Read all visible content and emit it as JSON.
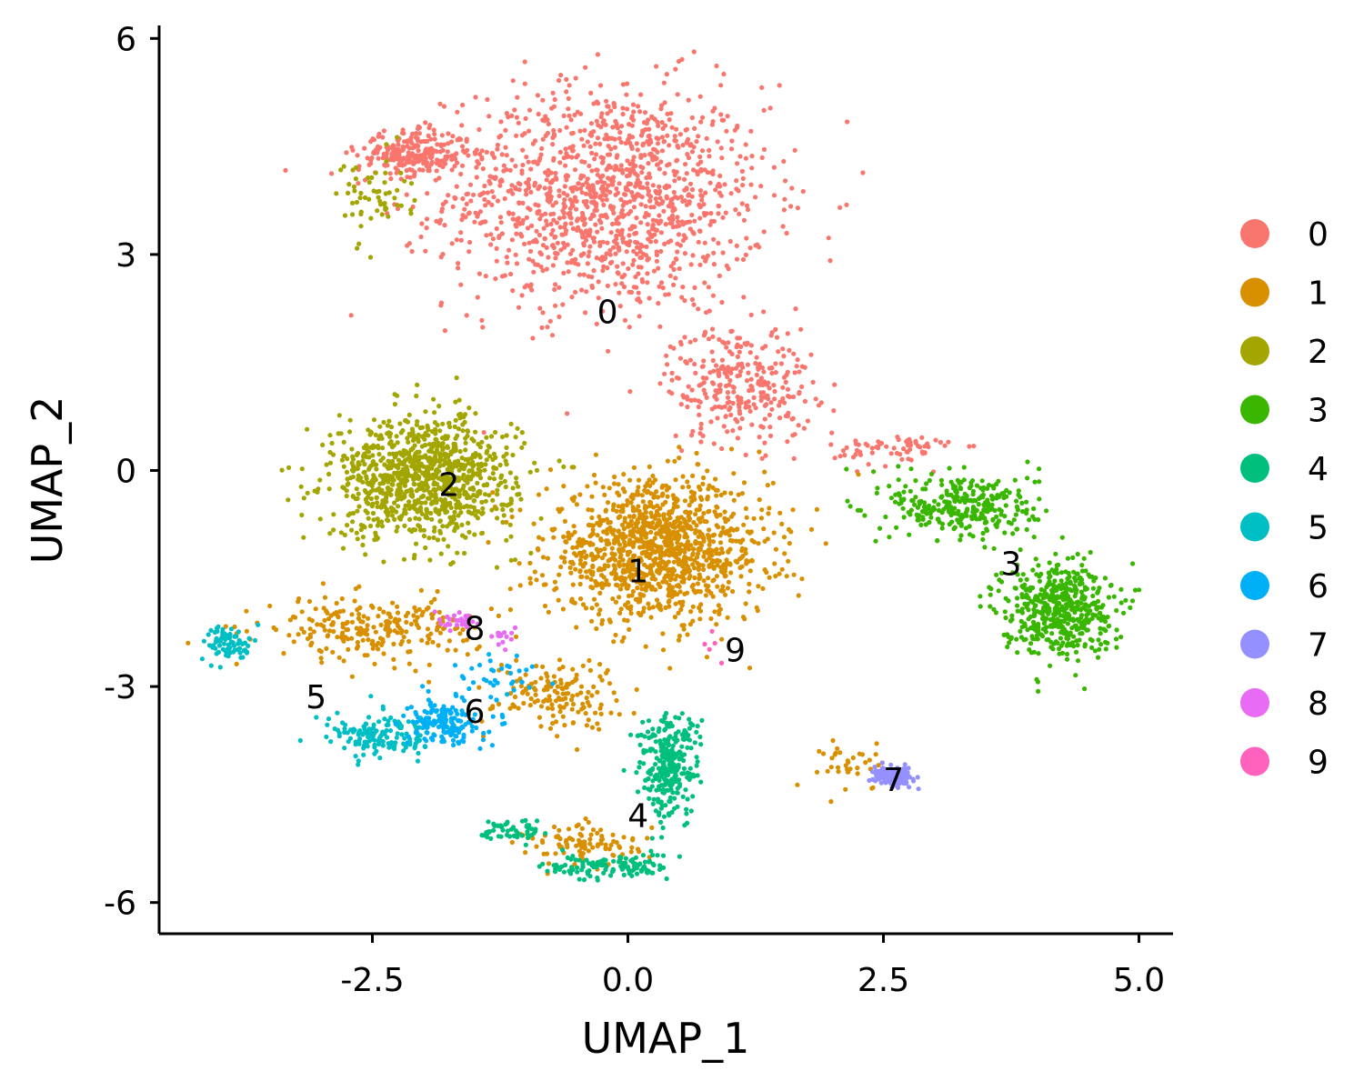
{
  "chart_data": {
    "type": "scatter",
    "title": "",
    "xlabel": "UMAP_1",
    "ylabel": "UMAP_2",
    "xlim": [
      -4.6,
      5.3
    ],
    "ylim": [
      -6.4,
      6.2
    ],
    "x_ticks": [
      -2.5,
      0.0,
      2.5,
      5.0
    ],
    "x_tick_labels": [
      "-2.5",
      "0.0",
      "2.5",
      "5.0"
    ],
    "y_ticks": [
      -6,
      -3,
      0,
      3,
      6
    ],
    "y_tick_labels": [
      "-6",
      "-3",
      "0",
      "3",
      "6"
    ],
    "grid": false,
    "legend_position": "right",
    "legend_title": "",
    "series": [
      {
        "name": "0",
        "color": "#F8766D",
        "label_pos": [
          -0.2,
          2.2
        ],
        "blobs": [
          {
            "center": [
              -0.2,
              3.8
            ],
            "spread": [
              1.3,
              1.3
            ],
            "n": 1300
          },
          {
            "center": [
              -2.1,
              4.4
            ],
            "spread": [
              0.45,
              0.25
            ],
            "n": 250
          },
          {
            "center": [
              1.1,
              1.2
            ],
            "spread": [
              0.6,
              0.7
            ],
            "n": 300
          },
          {
            "center": [
              2.6,
              0.3
            ],
            "spread": [
              0.5,
              0.2
            ],
            "n": 70
          }
        ]
      },
      {
        "name": "1",
        "color": "#D89000",
        "label_pos": [
          0.1,
          -1.4
        ],
        "blobs": [
          {
            "center": [
              0.3,
              -1.1
            ],
            "spread": [
              0.9,
              0.8
            ],
            "n": 1200
          },
          {
            "center": [
              -2.5,
              -2.2
            ],
            "spread": [
              0.9,
              0.35
            ],
            "n": 250
          },
          {
            "center": [
              -0.7,
              -3.1
            ],
            "spread": [
              0.5,
              0.4
            ],
            "n": 150
          },
          {
            "center": [
              -0.4,
              -5.2
            ],
            "spread": [
              0.5,
              0.25
            ],
            "n": 100
          },
          {
            "center": [
              2.2,
              -4.1
            ],
            "spread": [
              0.25,
              0.3
            ],
            "n": 40
          }
        ]
      },
      {
        "name": "2",
        "color": "#A3A500",
        "label_pos": [
          -1.75,
          -0.2
        ],
        "blobs": [
          {
            "center": [
              -2.0,
              -0.1
            ],
            "spread": [
              0.75,
              0.7
            ],
            "n": 1000
          },
          {
            "center": [
              -2.5,
              3.8
            ],
            "spread": [
              0.3,
              0.5
            ],
            "n": 60
          }
        ]
      },
      {
        "name": "3",
        "color": "#39B600",
        "label_pos": [
          3.75,
          -1.3
        ],
        "blobs": [
          {
            "center": [
              3.3,
              -0.5
            ],
            "spread": [
              0.6,
              0.4
            ],
            "n": 300
          },
          {
            "center": [
              4.2,
              -1.9
            ],
            "spread": [
              0.45,
              0.55
            ],
            "n": 500
          }
        ]
      },
      {
        "name": "4",
        "color": "#00BF7D",
        "label_pos": [
          0.1,
          -4.8
        ],
        "blobs": [
          {
            "center": [
              0.4,
              -4.1
            ],
            "spread": [
              0.25,
              0.6
            ],
            "n": 280
          },
          {
            "center": [
              -0.2,
              -5.5
            ],
            "spread": [
              0.5,
              0.15
            ],
            "n": 120
          },
          {
            "center": [
              -1.1,
              -5.0
            ],
            "spread": [
              0.3,
              0.15
            ],
            "n": 50
          }
        ]
      },
      {
        "name": "5",
        "color": "#00BFC4",
        "label_pos": [
          -3.05,
          -3.15
        ],
        "blobs": [
          {
            "center": [
              -3.9,
              -2.4
            ],
            "spread": [
              0.2,
              0.2
            ],
            "n": 80
          },
          {
            "center": [
              -2.4,
              -3.7
            ],
            "spread": [
              0.45,
              0.25
            ],
            "n": 150
          }
        ]
      },
      {
        "name": "6",
        "color": "#00B0F6",
        "label_pos": [
          -1.5,
          -3.35
        ],
        "blobs": [
          {
            "center": [
              -1.8,
              -3.5
            ],
            "spread": [
              0.3,
              0.25
            ],
            "n": 160
          },
          {
            "center": [
              -1.3,
              -2.9
            ],
            "spread": [
              0.3,
              0.3
            ],
            "n": 40
          }
        ]
      },
      {
        "name": "7",
        "color": "#9590FF",
        "label_pos": [
          2.6,
          -4.3
        ],
        "blobs": [
          {
            "center": [
              2.6,
              -4.25
            ],
            "spread": [
              0.15,
              0.1
            ],
            "n": 180
          }
        ]
      },
      {
        "name": "8",
        "color": "#E76BF3",
        "label_pos": [
          -1.5,
          -2.2
        ],
        "blobs": [
          {
            "center": [
              -1.7,
              -2.1
            ],
            "spread": [
              0.2,
              0.1
            ],
            "n": 30
          },
          {
            "center": [
              -1.2,
              -2.35
            ],
            "spread": [
              0.1,
              0.1
            ],
            "n": 15
          }
        ]
      },
      {
        "name": "9",
        "color": "#FF62BC",
        "label_pos": [
          1.05,
          -2.5
        ],
        "blobs": [
          {
            "center": [
              0.9,
              -2.5
            ],
            "spread": [
              0.15,
              0.15
            ],
            "n": 5
          }
        ]
      }
    ]
  }
}
